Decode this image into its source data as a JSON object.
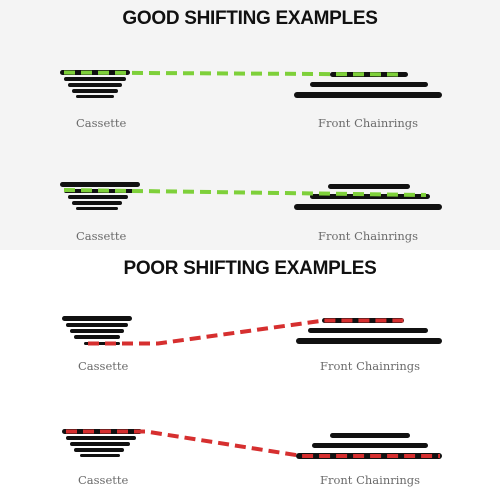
{
  "good": {
    "heading": "GOOD SHIFTING EXAMPLES",
    "color": "#7ed03a",
    "examples": [
      {
        "left_label": "Cassette",
        "right_label": "Front Chainrings"
      },
      {
        "left_label": "Cassette",
        "right_label": "Front Chainrings"
      }
    ]
  },
  "poor": {
    "heading": "POOR SHIFTING EXAMPLES",
    "color": "#d62f2f",
    "examples": [
      {
        "left_label": "Cassette",
        "right_label": "Front Chainrings"
      },
      {
        "left_label": "Cassette",
        "right_label": "Front Chainrings"
      }
    ]
  }
}
